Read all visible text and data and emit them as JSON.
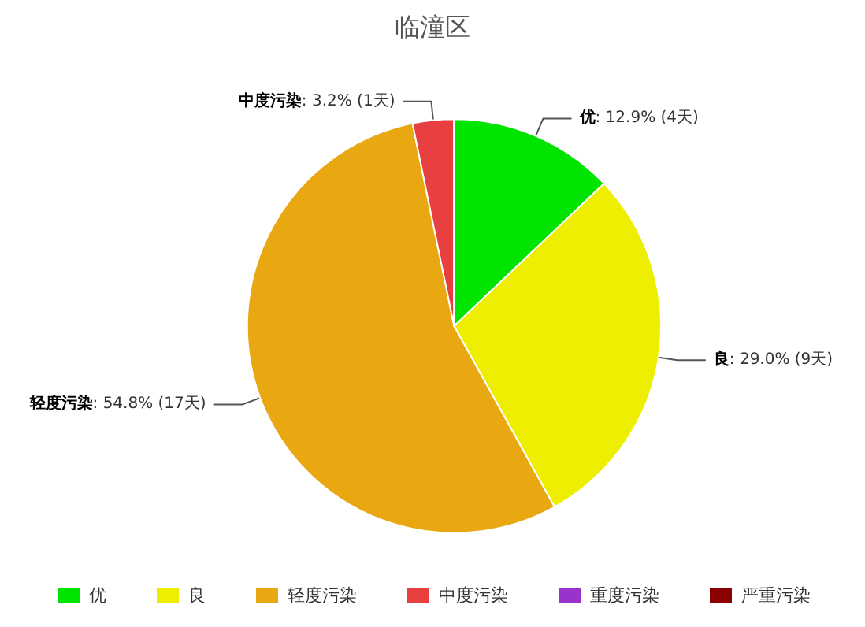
{
  "chart_data": {
    "type": "pie",
    "title": "临潼区",
    "categories": [
      "优",
      "良",
      "轻度污染",
      "中度污染",
      "重度污染",
      "严重污染"
    ],
    "values": [
      4,
      9,
      17,
      1,
      0,
      0
    ],
    "value_labels": [
      ": 12.9% (4天)",
      ": 29.0% (9天)",
      ": 54.8% (17天)",
      ": 3.2% (1天)",
      null,
      null
    ],
    "colors": [
      "#00e400",
      "#eeee00",
      "#e9a812",
      "#e84040",
      "#9933cc",
      "#8b0000"
    ],
    "legend": "bottom"
  }
}
